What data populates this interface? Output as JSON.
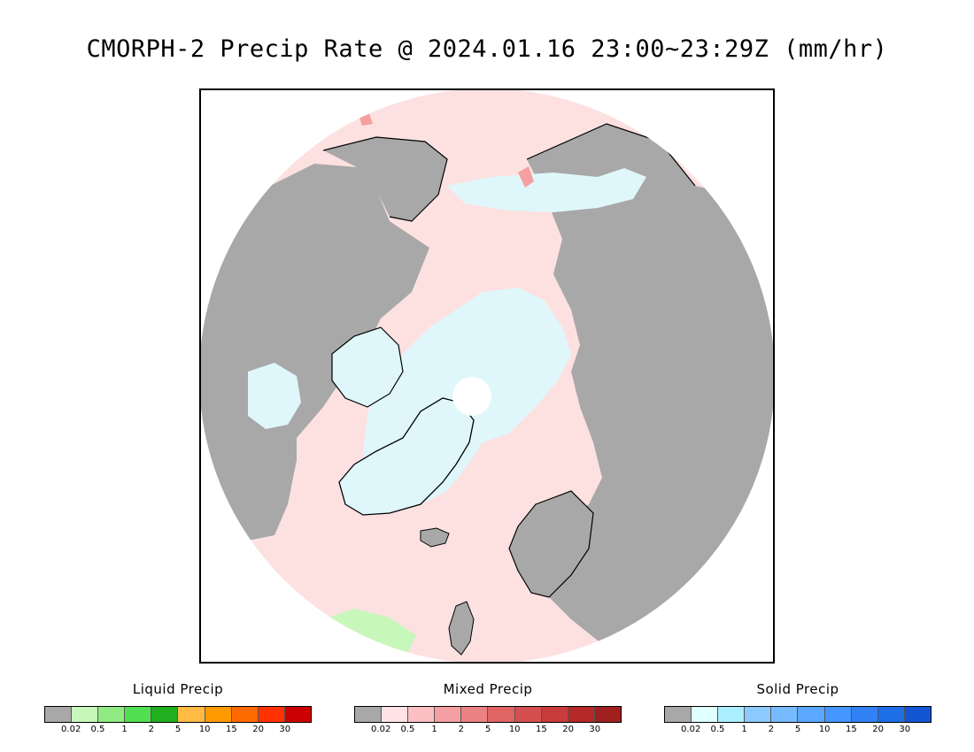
{
  "title": "CMORPH-2 Precip Rate @ 2024.01.16 23:00~23:29Z (mm/hr)",
  "map": {
    "projection": "north-polar-stereographic",
    "colors": {
      "ocean_no_precip": "#fde1e1",
      "land_no_precip": "#a8a8a8",
      "snow_light": "#dff7fa",
      "pole_gap": "#ffffff",
      "mixed_light": "#f5a0a0",
      "rain_light": "#c8f7bc",
      "coastline": "#000000"
    }
  },
  "legends": [
    {
      "title": "Liquid Precip",
      "colors": [
        "#a8a8a8",
        "#c8f7bc",
        "#90ec82",
        "#50df50",
        "#20b020",
        "#ffbb44",
        "#ff9a00",
        "#ff6a00",
        "#ff3200",
        "#cc0000"
      ],
      "labels": [
        "0.02",
        "0.5",
        "1",
        "2",
        "5",
        "10",
        "15",
        "20",
        "30"
      ]
    },
    {
      "title": "Mixed Precip",
      "colors": [
        "#a8a8a8",
        "#ffe2e6",
        "#fcc0c4",
        "#f4a0a2",
        "#ea8284",
        "#e06464",
        "#d45050",
        "#c83c3c",
        "#b42828",
        "#a02020"
      ],
      "labels": [
        "0.02",
        "0.5",
        "1",
        "2",
        "5",
        "10",
        "15",
        "20",
        "30"
      ]
    },
    {
      "title": "Solid Precip",
      "colors": [
        "#a8a8a8",
        "#e0ffff",
        "#aaeeff",
        "#8ccaff",
        "#78baff",
        "#5aa8ff",
        "#4696ff",
        "#3282f5",
        "#1e6ee6",
        "#1455d2"
      ],
      "labels": [
        "0.02",
        "0.5",
        "1",
        "2",
        "5",
        "10",
        "15",
        "20",
        "30"
      ]
    }
  ]
}
